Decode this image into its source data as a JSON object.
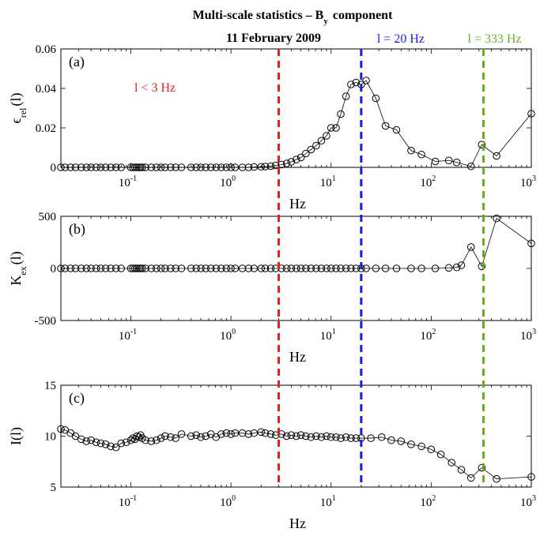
{
  "figure": {
    "title_main": "Multi-scale statistics – B",
    "title_sub": "y",
    "title_tail": "component",
    "date": "11 February 2009"
  },
  "vlines": [
    {
      "x": 3,
      "color": "#e02020",
      "label": "l < 3 Hz",
      "label_x": 0.14,
      "label_y": 0.035
    },
    {
      "x": 20,
      "color": "#1a1ad6",
      "label": "l = 20 Hz"
    },
    {
      "x": 333,
      "color": "#6aaa2a",
      "label": "l = 333 Hz"
    }
  ],
  "chart_data": [
    {
      "type": "line",
      "panel_label": "(a)",
      "ylabel_main": "ϵ",
      "ylabel_sub": "rel",
      "ylabel_tail": "(l)",
      "xlabel": "Hz",
      "xscale": "log",
      "xlim": [
        0.02,
        1000
      ],
      "ylim": [
        0,
        0.06
      ],
      "yticks": [
        0,
        0.02,
        0.04,
        0.06
      ],
      "ytick_labels": [
        "0",
        "0.02",
        "0.04",
        "0.06"
      ],
      "xtick_labels": [
        "10",
        "10",
        "10",
        "10"
      ],
      "xtick_exps": [
        "-1",
        "0",
        "1",
        "2",
        "3"
      ],
      "x": [
        0.02,
        0.022,
        0.025,
        0.028,
        0.032,
        0.036,
        0.04,
        0.045,
        0.05,
        0.056,
        0.063,
        0.071,
        0.08,
        0.1,
        0.105,
        0.11,
        0.115,
        0.12,
        0.125,
        0.13,
        0.14,
        0.16,
        0.18,
        0.2,
        0.22,
        0.25,
        0.28,
        0.32,
        0.4,
        0.45,
        0.5,
        0.56,
        0.63,
        0.71,
        0.8,
        0.9,
        1.0,
        1.1,
        1.3,
        1.5,
        1.7,
        2.0,
        2.2,
        2.5,
        2.8,
        3.2,
        3.6,
        4.0,
        4.5,
        5.0,
        5.6,
        6.3,
        7.1,
        8.0,
        9.0,
        10.0,
        11.2,
        12.5,
        14.1,
        15.8,
        17.8,
        20.0,
        22.4,
        28.0,
        35.0,
        45.0,
        63.0,
        80.0,
        110.0,
        150.0,
        180.0,
        250.0,
        320.0,
        450.0,
        1000.0
      ],
      "y": [
        0,
        0,
        0,
        0,
        0,
        0,
        0,
        0,
        0,
        0,
        0,
        0,
        0,
        0,
        0,
        0,
        0,
        0,
        0,
        0,
        0,
        0,
        0,
        0,
        0,
        0,
        0,
        0,
        0,
        0,
        0,
        0,
        0,
        0,
        0,
        0,
        0,
        0,
        0,
        0,
        0.0002,
        0.0003,
        0.0004,
        0.0006,
        0.001,
        0.0014,
        0.002,
        0.0028,
        0.004,
        0.005,
        0.007,
        0.009,
        0.011,
        0.0135,
        0.016,
        0.02,
        0.02,
        0.027,
        0.036,
        0.042,
        0.043,
        0.042,
        0.044,
        0.035,
        0.021,
        0.019,
        0.0085,
        0.0065,
        0.003,
        0.0035,
        0.0025,
        0.0005,
        0.0115,
        0.0058,
        0.0272
      ]
    },
    {
      "type": "line",
      "panel_label": "(b)",
      "ylabel_main": "K",
      "ylabel_sub": "ex",
      "ylabel_tail": "(l)",
      "xlabel": "Hz",
      "xscale": "log",
      "xlim": [
        0.02,
        1000
      ],
      "ylim": [
        -500,
        500
      ],
      "yticks": [
        -500,
        0,
        500
      ],
      "ytick_labels": [
        "-500",
        "0",
        "500"
      ],
      "xtick_labels": [
        "10",
        "10",
        "10",
        "10"
      ],
      "xtick_exps": [
        "-1",
        "0",
        "1",
        "2",
        "3"
      ],
      "x": [
        0.02,
        0.022,
        0.025,
        0.028,
        0.032,
        0.036,
        0.04,
        0.045,
        0.05,
        0.056,
        0.063,
        0.071,
        0.08,
        0.1,
        0.105,
        0.11,
        0.115,
        0.12,
        0.125,
        0.13,
        0.14,
        0.16,
        0.18,
        0.2,
        0.22,
        0.25,
        0.28,
        0.32,
        0.4,
        0.45,
        0.5,
        0.56,
        0.63,
        0.71,
        0.8,
        0.9,
        1.0,
        1.1,
        1.3,
        1.5,
        1.7,
        2.0,
        2.2,
        2.5,
        2.8,
        3.2,
        3.6,
        4.0,
        4.5,
        5.0,
        5.6,
        6.3,
        7.1,
        8.0,
        9.0,
        10.0,
        11.2,
        12.5,
        14.1,
        15.8,
        17.8,
        20.0,
        22.4,
        28.0,
        35.0,
        45.0,
        63.0,
        80.0,
        110.0,
        150.0,
        180.0,
        200.0,
        250.0,
        320.0,
        450.0,
        1000.0
      ],
      "y": [
        0,
        0,
        0,
        0,
        0,
        0,
        0,
        0,
        0,
        0,
        0,
        0,
        0,
        0,
        0,
        0,
        0,
        0,
        0,
        0,
        0,
        0,
        0,
        0,
        0,
        0,
        0,
        0,
        0,
        0,
        0,
        0,
        0,
        0,
        0,
        0,
        0,
        0,
        0,
        0,
        0,
        0,
        0,
        0,
        0,
        0,
        0,
        0,
        0,
        0,
        0,
        0,
        0,
        0,
        0,
        0,
        0,
        0,
        0,
        0,
        0,
        0,
        0,
        0,
        0,
        0,
        0,
        0,
        0,
        5,
        10,
        30,
        205,
        20,
        480,
        240
      ]
    },
    {
      "type": "line",
      "panel_label": "(c)",
      "ylabel_main": "I(l)",
      "ylabel_sub": "",
      "ylabel_tail": "",
      "xlabel": "Hz",
      "xscale": "log",
      "xlim": [
        0.02,
        1000
      ],
      "ylim": [
        5,
        15
      ],
      "yticks": [
        5,
        10,
        15
      ],
      "ytick_labels": [
        "5",
        "10",
        "15"
      ],
      "xtick_labels": [
        "10",
        "10",
        "10",
        "10"
      ],
      "xtick_exps": [
        "-1",
        "0",
        "1",
        "2",
        "3"
      ],
      "x": [
        0.02,
        0.022,
        0.025,
        0.028,
        0.032,
        0.036,
        0.04,
        0.045,
        0.05,
        0.056,
        0.063,
        0.071,
        0.08,
        0.09,
        0.1,
        0.105,
        0.11,
        0.115,
        0.12,
        0.125,
        0.13,
        0.14,
        0.16,
        0.18,
        0.2,
        0.22,
        0.25,
        0.28,
        0.32,
        0.4,
        0.45,
        0.5,
        0.56,
        0.63,
        0.71,
        0.8,
        0.9,
        1.0,
        1.1,
        1.3,
        1.5,
        1.7,
        2.0,
        2.2,
        2.5,
        2.8,
        3.2,
        3.6,
        4.0,
        4.5,
        5.0,
        5.6,
        6.3,
        7.1,
        8.0,
        9.0,
        10.0,
        11.2,
        12.5,
        14.1,
        15.8,
        17.8,
        20.0,
        25.0,
        32.0,
        40.0,
        50.0,
        63.0,
        80.0,
        100.0,
        125.0,
        160.0,
        200.0,
        250.0,
        320.0,
        450.0,
        1000.0
      ],
      "y": [
        10.7,
        10.6,
        10.3,
        10.0,
        9.7,
        9.5,
        9.6,
        9.4,
        9.3,
        9.2,
        9.0,
        8.9,
        9.3,
        9.4,
        9.6,
        9.8,
        9.7,
        10.0,
        9.9,
        10.1,
        9.8,
        9.6,
        9.5,
        9.6,
        9.8,
        10.0,
        9.9,
        9.8,
        10.2,
        10.0,
        10.1,
        9.9,
        10.0,
        10.2,
        9.9,
        10.2,
        10.3,
        10.2,
        10.3,
        10.3,
        10.2,
        10.3,
        10.4,
        10.3,
        10.2,
        10.1,
        10.2,
        10.0,
        10.1,
        10.0,
        10.1,
        10.0,
        9.9,
        10.0,
        9.9,
        10.0,
        9.9,
        9.9,
        9.8,
        9.9,
        9.8,
        9.8,
        9.8,
        9.8,
        9.9,
        9.6,
        9.5,
        9.2,
        9.0,
        8.7,
        8.2,
        7.4,
        6.7,
        5.9,
        6.9,
        5.8,
        6.0
      ]
    }
  ]
}
